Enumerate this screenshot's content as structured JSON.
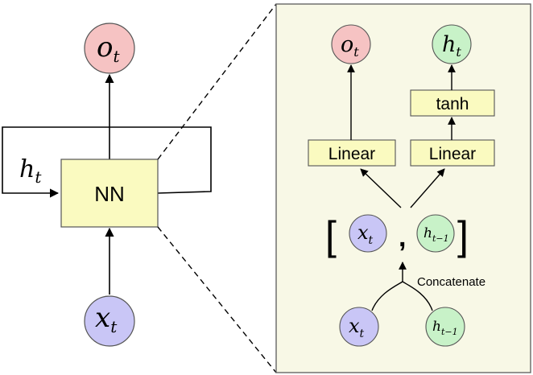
{
  "left": {
    "output": {
      "base": "o",
      "sub": "t"
    },
    "input": {
      "base": "x",
      "sub": "t"
    },
    "hidden": {
      "base": "h",
      "sub": "t"
    },
    "block_label": "NN"
  },
  "right": {
    "output": {
      "base": "o",
      "sub": "t"
    },
    "hidden_out": {
      "base": "h",
      "sub": "t"
    },
    "tanh_label": "tanh",
    "linear_left_label": "Linear",
    "linear_right_label": "Linear",
    "bracket_open": "[",
    "bracket_close": "]",
    "comma": ",",
    "concat_x": {
      "base": "x",
      "sub": "t"
    },
    "concat_h": {
      "base": "h",
      "sub": "t−1"
    },
    "concatenate_label": "Concatenate",
    "in_x": {
      "base": "x",
      "sub": "t"
    },
    "in_h": {
      "base": "h",
      "sub": "t−1"
    }
  },
  "colors": {
    "red_node": "#f6c3c3",
    "blue_node": "#c9c6f6",
    "green_node": "#c8f2c8",
    "yellow_block": "#fafac0",
    "panel_bg": "#f8f8e6"
  }
}
